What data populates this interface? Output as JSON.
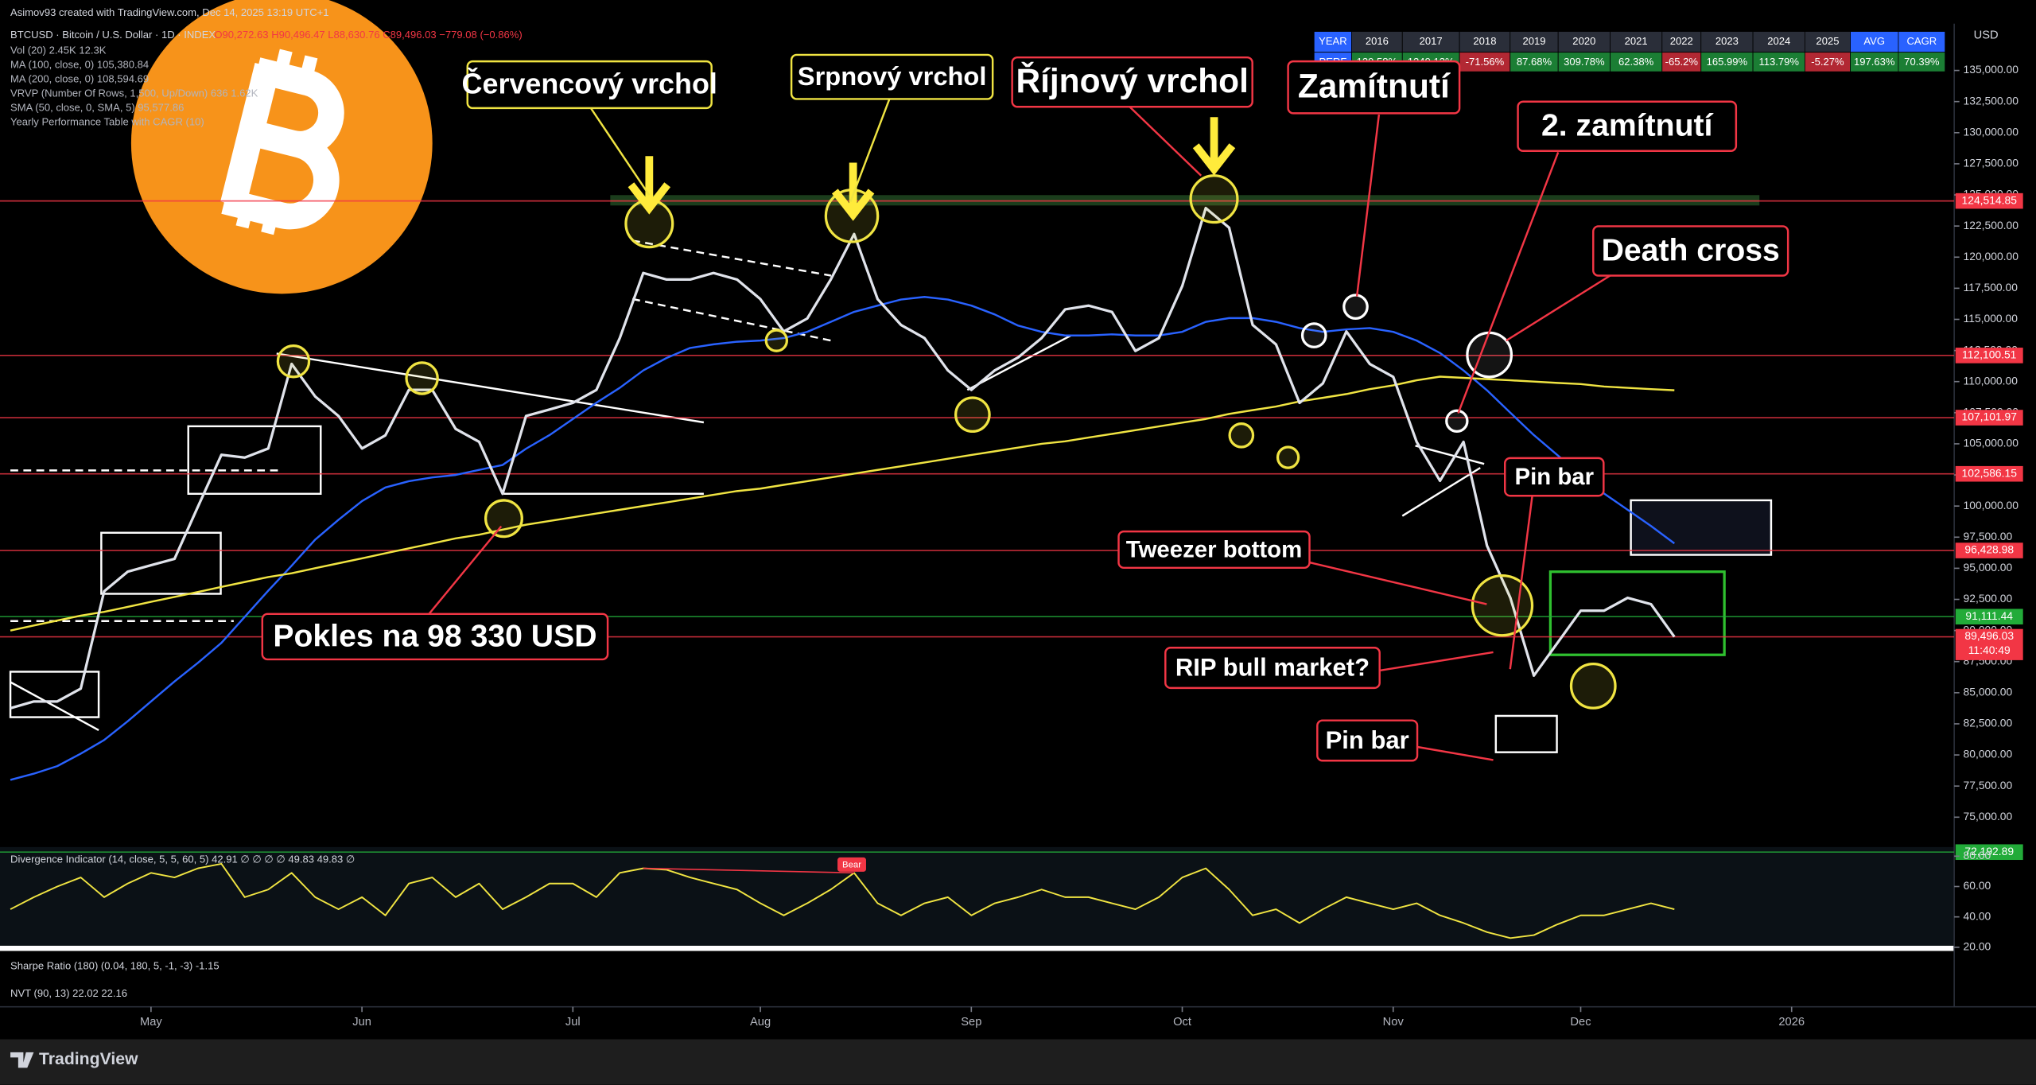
{
  "header": {
    "credit": "Asimov93 created with TradingView.com, Dec 14, 2025 13:19 UTC+1",
    "symbol": "BTCUSD · Bitcoin / U.S. Dollar · 1D · INDEX",
    "ohlc": "O90,272.63 H90,496.47 L88,630.76 C89,496.03 −779.08 (−0.86%)",
    "indicators": [
      "Vol (20) 2.45K 12.3K",
      "MA (100, close, 0) 105,380.84",
      "MA (200, close, 0) 108,594.69",
      "VRVP (Number Of Rows, 1,500, Up/Down) 636 1.62K",
      "SMA (50, close, 0, SMA, 5) 95,577.86",
      "Yearly Performance Table with CAGR (10)"
    ]
  },
  "currency": "USD",
  "table": {
    "header": [
      "YEAR",
      "2016",
      "2017",
      "2018",
      "2019",
      "2020",
      "2021",
      "2022",
      "2023",
      "2024",
      "2025",
      "AVG",
      "CAGR"
    ],
    "row": [
      "PERF",
      "129.58%",
      "1249.13%",
      "-71.56%",
      "87.68%",
      "309.78%",
      "62.38%",
      "-65.2%",
      "165.99%",
      "113.79%",
      "-5.27%",
      "197.63%",
      "70.39%"
    ]
  },
  "chart_data": [
    {
      "type": "line",
      "categories": [
        null,
        null,
        null,
        null,
        null,
        null,
        "May",
        null,
        null,
        null,
        null,
        null,
        null,
        null,
        null,
        "Jun",
        null,
        null,
        null,
        null,
        null,
        null,
        null,
        null,
        "Jul",
        null,
        null,
        null,
        null,
        null,
        null,
        null,
        "Aug",
        null,
        null,
        null,
        null,
        null,
        null,
        null,
        null,
        "Sep",
        null,
        null,
        null,
        null,
        null,
        null,
        null,
        null,
        "Oct",
        null,
        null,
        null,
        null,
        null,
        null,
        null,
        null,
        "Nov",
        null,
        null,
        null,
        null,
        null,
        null,
        null,
        "Dec",
        null,
        null,
        null,
        null,
        null,
        null,
        null,
        null,
        "2026",
        null,
        null,
        null,
        null,
        null,
        null
      ],
      "series": [
        {
          "color": "#2962ff",
          "values": [
            78000,
            78500,
            79100,
            80100,
            81200,
            82700,
            84300,
            85900,
            87400,
            89000,
            91100,
            93200,
            95200,
            97300,
            98900,
            100400,
            101500,
            102000,
            102300,
            102500,
            102900,
            103300,
            104600,
            105700,
            107000,
            108300,
            109500,
            110900,
            111900,
            112700,
            113000,
            113200,
            113300,
            113500,
            114000,
            114800,
            115600,
            116100,
            116600,
            116800,
            116600,
            116100,
            115400,
            114500,
            114000,
            113700,
            113700,
            113800,
            113700,
            113700,
            114000,
            114800,
            115100,
            115100,
            114800,
            114300,
            114000,
            114200,
            114300,
            114000,
            113300,
            112300,
            110900,
            109300,
            107500,
            105700,
            104100,
            102500,
            101000,
            99700,
            98400,
            97000,
            null,
            null,
            null,
            null,
            null,
            null,
            null,
            null,
            null,
            null,
            null
          ]
        },
        {
          "color": "#f0e442",
          "values": [
            90000,
            90400,
            90800,
            91200,
            91500,
            91900,
            92300,
            92700,
            93100,
            93500,
            93900,
            94300,
            94600,
            95000,
            95400,
            95800,
            96200,
            96600,
            97000,
            97400,
            97700,
            98100,
            98500,
            98800,
            99100,
            99400,
            99700,
            100000,
            100300,
            100600,
            100900,
            101200,
            101400,
            101700,
            102000,
            102300,
            102600,
            102900,
            103200,
            103500,
            103800,
            104100,
            104400,
            104700,
            105000,
            105200,
            105500,
            105800,
            106100,
            106400,
            106700,
            107000,
            107400,
            107700,
            108000,
            108400,
            108700,
            109000,
            109400,
            109700,
            110100,
            110400,
            110300,
            110200,
            110100,
            110000,
            109900,
            109800,
            109600,
            109500,
            109400,
            109300,
            null,
            null,
            null,
            null,
            null,
            null,
            null,
            null,
            null,
            null,
            null
          ]
        },
        {
          "color": "#e0e3eb",
          "values": [
            83760,
            84300,
            84300,
            85330,
            93150,
            94720,
            95240,
            95760,
            99940,
            104110,
            103900,
            104630,
            111420,
            108810,
            107240,
            104630,
            105680,
            109330,
            109330,
            106200,
            105160,
            100980,
            107240,
            107760,
            108290,
            109330,
            113500,
            118720,
            118200,
            118200,
            118720,
            118200,
            116630,
            114030,
            115070,
            118200,
            121850,
            116630,
            114550,
            113500,
            110900,
            109330,
            110900,
            111940,
            113500,
            115800,
            116110,
            115590,
            112460,
            113500,
            117680,
            123940,
            122370,
            114550,
            112980,
            108290,
            109850,
            114030,
            111420,
            110380,
            105160,
            102030,
            105160,
            96810,
            92630,
            86370,
            88980,
            91590,
            91590,
            92630,
            92110,
            89496.03,
            null,
            null,
            null,
            null,
            null,
            null,
            null,
            null,
            null,
            null,
            null
          ]
        }
      ],
      "ylim": [
        72600,
        138760
      ],
      "yticks": [
        {
          "value": 75000,
          "label": "75,000.00"
        },
        {
          "value": 77500,
          "label": "77,500.00"
        },
        {
          "value": 80000,
          "label": "80,000.00"
        },
        {
          "value": 82500,
          "label": "82,500.00"
        },
        {
          "value": 85000,
          "label": "85,000.00"
        },
        {
          "value": 87500,
          "label": "87,500.00"
        },
        {
          "value": 90000,
          "label": "90,000.00"
        },
        {
          "value": 92500,
          "label": "92,500.00"
        },
        {
          "value": 95000,
          "label": "95,000.00"
        },
        {
          "value": 97500,
          "label": "97,500.00"
        },
        {
          "value": 100000,
          "label": "100,000.00"
        },
        {
          "value": 102500,
          "label": "102,500.00"
        },
        {
          "value": 105000,
          "label": "105,000.00"
        },
        {
          "value": 107500,
          "label": "107,500.00"
        },
        {
          "value": 110000,
          "label": "110,000.00"
        },
        {
          "value": 112500,
          "label": "112,500.00"
        },
        {
          "value": 115000,
          "label": "115,000.00"
        },
        {
          "value": 117500,
          "label": "117,500.00"
        },
        {
          "value": 120000,
          "label": "120,000.00"
        },
        {
          "value": 122500,
          "label": "122,500.00"
        },
        {
          "value": 125000,
          "label": "125,000.00"
        },
        {
          "value": 127500,
          "label": "127,500.00"
        },
        {
          "value": 130000,
          "label": "130,000.00"
        },
        {
          "value": 132500,
          "label": "132,500.00"
        },
        {
          "value": 135000,
          "label": "135,000.00"
        }
      ],
      "levels": [
        {
          "value": 124514.85,
          "label": "124,514.85",
          "color": "#f23645"
        },
        {
          "value": 112100.51,
          "label": "112,100.51",
          "color": "#f23645"
        },
        {
          "value": 107101.97,
          "label": "107,101.97",
          "color": "#f23645"
        },
        {
          "value": 102586.15,
          "label": "102,586.15",
          "color": "#f23645"
        },
        {
          "value": 96428.98,
          "label": "96,428.98",
          "color": "#f23645"
        },
        {
          "value": 91111.44,
          "label": "91,111.44",
          "color": "#22ab39"
        },
        {
          "value": 89496.03,
          "label": "89,496.03",
          "countdown": "11:40:49",
          "color": "#f23645"
        },
        {
          "value": 72192.89,
          "label": "72,192.89",
          "color": "#22ab39"
        }
      ]
    },
    {
      "type": "line",
      "title": "Divergence Indicator (14, close, 5, 5, 60, 5) 42.91 ∅ ∅ ∅ ∅ 49.83 49.83 ∅",
      "annotation": "Bear",
      "series": [
        {
          "color": "#f0e442",
          "values": [
            45,
            53,
            60,
            66,
            53,
            62,
            69,
            66,
            72,
            75,
            53,
            58,
            69,
            53,
            45,
            53,
            41,
            62,
            66,
            53,
            62,
            45,
            53,
            62,
            62,
            53,
            69,
            72,
            71,
            66,
            62,
            58,
            49,
            41,
            49,
            58,
            69,
            49,
            41,
            49,
            53,
            41,
            49,
            53,
            58,
            53,
            53,
            49,
            45,
            53,
            66,
            72,
            58,
            41,
            45,
            36,
            45,
            53,
            49,
            45,
            49,
            41,
            36,
            30,
            26,
            28,
            35,
            41,
            41,
            45,
            49,
            45
          ]
        }
      ],
      "ylim": [
        15,
        86
      ],
      "yticks": [
        {
          "value": 20,
          "label": "20.00"
        },
        {
          "value": 40,
          "label": "40.00"
        },
        {
          "value": 60,
          "label": "60.00"
        },
        {
          "value": 80,
          "label": "80.00"
        }
      ]
    }
  ],
  "annotations": [
    {
      "text": "Červencový vrchol",
      "style": "yellow"
    },
    {
      "text": "Srpnový vrchol",
      "style": "yellow"
    },
    {
      "text": "Říjnový vrchol",
      "style": "red"
    },
    {
      "text": "Zamítnutí",
      "style": "red"
    },
    {
      "text": "2. zamítnutí",
      "style": "red"
    },
    {
      "text": "Death cross",
      "style": "red"
    },
    {
      "text": "Pin bar",
      "style": "red"
    },
    {
      "text": "Tweezer bottom",
      "style": "red"
    },
    {
      "text": "Pokles na 98 330 USD",
      "style": "red"
    },
    {
      "text": "RIP bull market?",
      "style": "red"
    },
    {
      "text": "Pin bar",
      "style": "red"
    }
  ],
  "panels": [
    "Sharpe Ratio (180) (0.04, 180, 5, -1, -3) -1.15",
    "NVT (90, 13) 22.02 22.16"
  ],
  "footer": {
    "logo": "TradingView"
  }
}
